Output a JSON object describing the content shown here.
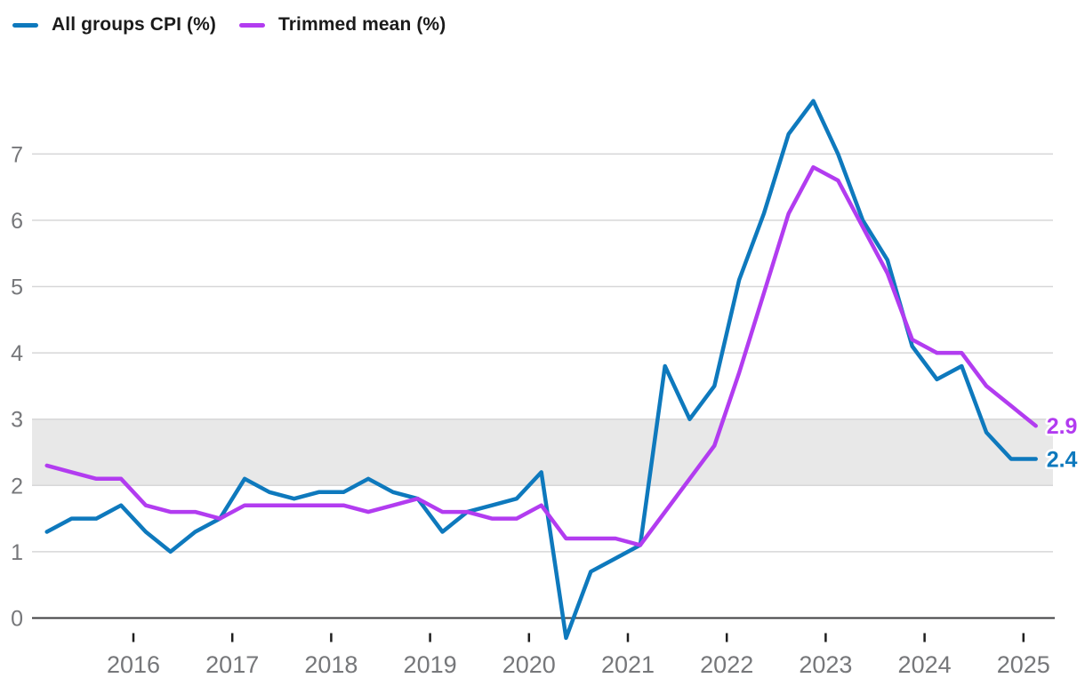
{
  "legend": {
    "items": [
      {
        "label": "All groups CPI (%)",
        "color": "#0e79bd"
      },
      {
        "label": "Trimmed mean (%)",
        "color": "#b23cf0"
      }
    ]
  },
  "chart_data": {
    "type": "line",
    "frequency": "quarterly",
    "quarters": [
      "2015 Q1",
      "2015 Q2",
      "2015 Q3",
      "2015 Q4",
      "2016 Q1",
      "2016 Q2",
      "2016 Q3",
      "2016 Q4",
      "2017 Q1",
      "2017 Q2",
      "2017 Q3",
      "2017 Q4",
      "2018 Q1",
      "2018 Q2",
      "2018 Q3",
      "2018 Q4",
      "2019 Q1",
      "2019 Q2",
      "2019 Q3",
      "2019 Q4",
      "2020 Q1",
      "2020 Q2",
      "2020 Q3",
      "2020 Q4",
      "2021 Q1",
      "2021 Q2",
      "2021 Q3",
      "2021 Q4",
      "2022 Q1",
      "2022 Q2",
      "2022 Q3",
      "2022 Q4",
      "2023 Q1",
      "2023 Q2",
      "2023 Q3",
      "2023 Q4",
      "2024 Q1",
      "2024 Q2",
      "2024 Q3",
      "2024 Q4",
      "2025 Q1"
    ],
    "series": [
      {
        "key": "all-groups-cpi",
        "name": "All groups CPI (%)",
        "color": "#0e79bd",
        "end_label": "2.4",
        "values": [
          1.3,
          1.5,
          1.5,
          1.7,
          1.3,
          1.0,
          1.3,
          1.5,
          2.1,
          1.9,
          1.8,
          1.9,
          1.9,
          2.1,
          1.9,
          1.8,
          1.3,
          1.6,
          1.7,
          1.8,
          2.2,
          -0.3,
          0.7,
          0.9,
          1.1,
          3.8,
          3.0,
          3.5,
          5.1,
          6.1,
          7.3,
          7.8,
          7.0,
          6.0,
          5.4,
          4.1,
          3.6,
          3.8,
          2.8,
          2.4,
          2.4
        ]
      },
      {
        "key": "trimmed-mean",
        "name": "Trimmed mean (%)",
        "color": "#b23cf0",
        "end_label": "2.9",
        "values": [
          2.3,
          2.2,
          2.1,
          2.1,
          1.7,
          1.6,
          1.6,
          1.5,
          1.7,
          1.7,
          1.7,
          1.7,
          1.7,
          1.6,
          1.7,
          1.8,
          1.6,
          1.6,
          1.5,
          1.5,
          1.7,
          1.2,
          1.2,
          1.2,
          1.1,
          1.6,
          2.1,
          2.6,
          3.7,
          4.9,
          6.1,
          6.8,
          6.6,
          5.9,
          5.2,
          4.2,
          4.0,
          4.0,
          3.5,
          3.2,
          2.9
        ]
      }
    ],
    "x_tick_labels": [
      "2016",
      "2017",
      "2018",
      "2019",
      "2020",
      "2021",
      "2022",
      "2023",
      "2024",
      "2025"
    ],
    "y_tick_labels": [
      "0",
      "1",
      "2",
      "3",
      "4",
      "5",
      "6",
      "7"
    ],
    "ylim": [
      -0.5,
      8.1
    ],
    "grid": "horizontal",
    "legend_position": "top-left",
    "target_band": {
      "from": 2,
      "to": 3,
      "color": "#e8e8e8"
    },
    "colors": {
      "gridline": "#d7d7d8",
      "axis_line": "#3d3d3f",
      "tick": "#1f1f1f",
      "axis_text": "#76777a"
    }
  }
}
